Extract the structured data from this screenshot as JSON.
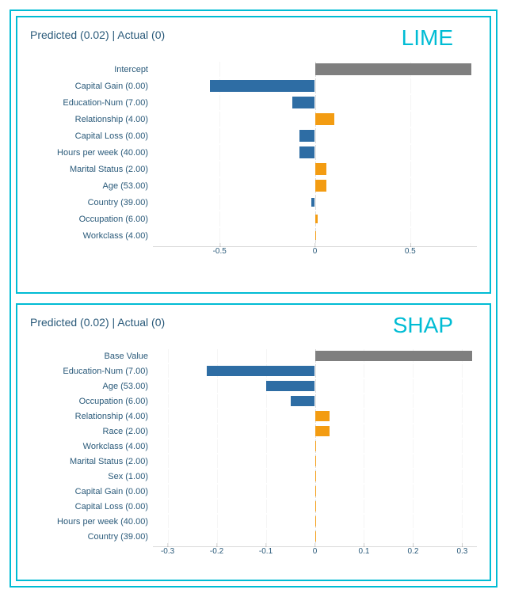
{
  "colors": {
    "border": "#00bcd4",
    "method_label": "#00bcd4",
    "text": "#2a5a7a",
    "intercept_bar": "#7f7f7f",
    "negative_bar": "#2e6da4",
    "positive_bar": "#f39c12",
    "background": "#ffffff"
  },
  "lime": {
    "title": "Predicted (0.02) | Actual (0)",
    "method": "LIME",
    "xlim": [
      -0.85,
      0.85
    ],
    "xticks": [
      -0.5,
      0,
      0.5
    ],
    "rows": [
      {
        "label": "Intercept",
        "value": 0.82,
        "kind": "intercept"
      },
      {
        "label": "Capital Gain (0.00)",
        "value": -0.55,
        "kind": "neg"
      },
      {
        "label": "Education-Num (7.00)",
        "value": -0.12,
        "kind": "neg"
      },
      {
        "label": "Relationship (4.00)",
        "value": 0.1,
        "kind": "pos"
      },
      {
        "label": "Capital Loss (0.00)",
        "value": -0.08,
        "kind": "neg"
      },
      {
        "label": "Hours per week (40.00)",
        "value": -0.08,
        "kind": "neg"
      },
      {
        "label": "Marital Status (2.00)",
        "value": 0.06,
        "kind": "pos"
      },
      {
        "label": "Age (53.00)",
        "value": 0.06,
        "kind": "pos"
      },
      {
        "label": "Country (39.00)",
        "value": -0.02,
        "kind": "neg",
        "thin": true
      },
      {
        "label": "Occupation (6.00)",
        "value": 0.015,
        "kind": "pos",
        "thin": true
      },
      {
        "label": "Workclass (4.00)",
        "value": 0.005,
        "kind": "pos",
        "thin": true
      }
    ]
  },
  "shap": {
    "title": "Predicted (0.02) | Actual (0)",
    "method": "SHAP",
    "xlim": [
      -0.33,
      0.33
    ],
    "xticks": [
      -0.3,
      -0.2,
      -0.1,
      0,
      0.1,
      0.2,
      0.3
    ],
    "rows": [
      {
        "label": "Base Value",
        "value": 0.32,
        "kind": "intercept"
      },
      {
        "label": "Education-Num (7.00)",
        "value": -0.22,
        "kind": "neg"
      },
      {
        "label": "Age (53.00)",
        "value": -0.1,
        "kind": "neg"
      },
      {
        "label": "Occupation (6.00)",
        "value": -0.05,
        "kind": "neg"
      },
      {
        "label": "Relationship (4.00)",
        "value": 0.03,
        "kind": "pos"
      },
      {
        "label": "Race (2.00)",
        "value": 0.03,
        "kind": "pos"
      },
      {
        "label": "Workclass (4.00)",
        "value": 0.0,
        "kind": "pos"
      },
      {
        "label": "Marital Status (2.00)",
        "value": 0.0,
        "kind": "pos"
      },
      {
        "label": "Sex (1.00)",
        "value": 0.0,
        "kind": "pos"
      },
      {
        "label": "Capital Gain (0.00)",
        "value": 0.0,
        "kind": "pos"
      },
      {
        "label": "Capital Loss (0.00)",
        "value": 0.0,
        "kind": "pos"
      },
      {
        "label": "Hours per week (40.00)",
        "value": 0.0,
        "kind": "pos"
      },
      {
        "label": "Country (39.00)",
        "value": 0.0,
        "kind": "pos"
      }
    ]
  }
}
